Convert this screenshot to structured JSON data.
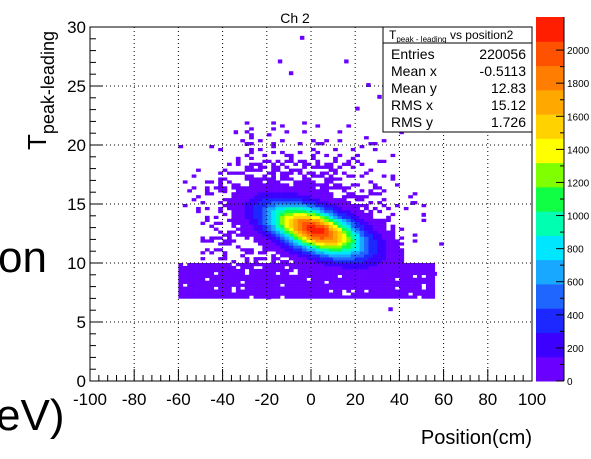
{
  "background_fragments": [
    "on",
    "eV)"
  ],
  "chart_data": {
    "type": "heatmap",
    "title": "Ch 2",
    "xlabel": "Position(cm)",
    "ylabel_main": "T",
    "ylabel_sub": "peak-leading",
    "xlim": [
      -100,
      100
    ],
    "ylim": [
      0,
      30
    ],
    "x_ticks": [
      -100,
      -80,
      -60,
      -40,
      -20,
      0,
      20,
      40,
      60,
      80,
      100
    ],
    "y_ticks": [
      0,
      5,
      10,
      15,
      20,
      25,
      30
    ],
    "grid": true,
    "grid_style": "dotted",
    "colorbar": {
      "min": 0,
      "max": 2200,
      "ticks": [
        0,
        200,
        400,
        600,
        800,
        1000,
        1200,
        1400,
        1600,
        1800,
        2000
      ],
      "colors": [
        "#6a00ff",
        "#3c00ff",
        "#1c28ff",
        "#1f66ff",
        "#19a8ff",
        "#00e6ff",
        "#00ffb0",
        "#10ff45",
        "#7fff00",
        "#ffff00",
        "#ffd200",
        "#ffa800",
        "#ff7d00",
        "#ff5200",
        "#ff1e00"
      ]
    },
    "stats": {
      "title_main": "T",
      "title_sub": "peak - leading",
      "title_rest": " vs position2",
      "rows": [
        {
          "label": "Entries",
          "value": "220056"
        },
        {
          "label": "Mean x",
          "value": "-0.5113"
        },
        {
          "label": "Mean y",
          "value": "12.83"
        },
        {
          "label": "RMS x",
          "value": "15.12"
        },
        {
          "label": "RMS y",
          "value": "1.726"
        }
      ]
    },
    "distribution": {
      "core": {
        "x": 2,
        "y": 12.8,
        "sx": 14,
        "sy": 1.4,
        "rho": -0.55,
        "peak": 2150
      },
      "halo_x": [
        -60,
        60
      ],
      "halo_y": [
        7,
        22
      ],
      "sparse_points": [
        [
          -5,
          29
        ],
        [
          -15,
          27
        ],
        [
          -10,
          26
        ],
        [
          15,
          27
        ],
        [
          25,
          25
        ],
        [
          30,
          24
        ],
        [
          20,
          23
        ],
        [
          -35,
          21
        ],
        [
          -30,
          20
        ],
        [
          35,
          22
        ],
        [
          40,
          21
        ],
        [
          -40,
          16
        ],
        [
          45,
          15
        ],
        [
          50,
          14
        ],
        [
          -50,
          12
        ],
        [
          55,
          9
        ],
        [
          -55,
          8
        ],
        [
          35,
          6
        ],
        [
          -20,
          7
        ]
      ]
    }
  }
}
